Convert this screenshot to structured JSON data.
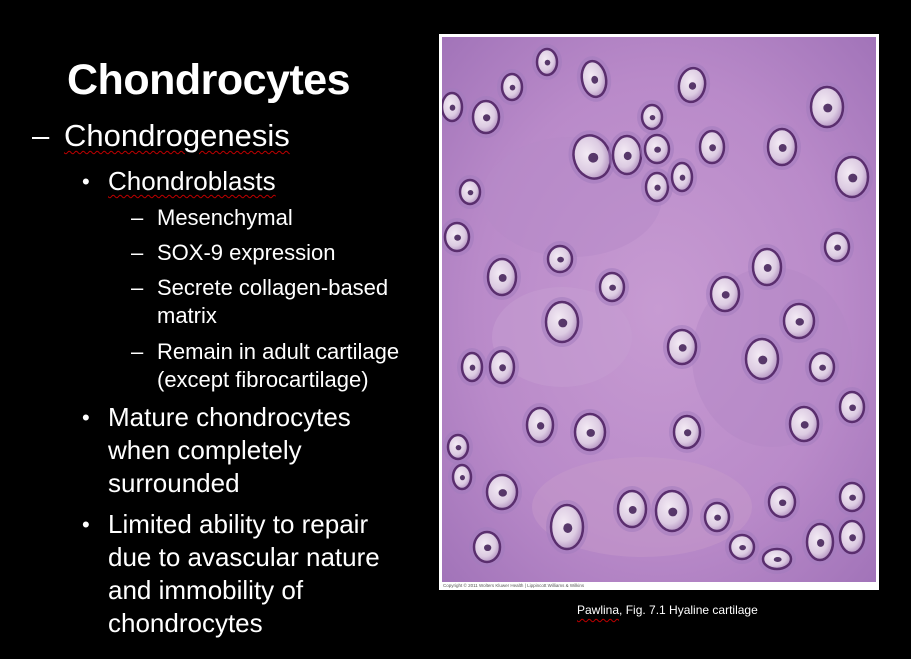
{
  "slide": {
    "title": "Chondrocytes",
    "level1": {
      "dash": "–",
      "text": "Chondrogenesis"
    },
    "chondroblasts": {
      "bullet": "•",
      "text": "Chondroblasts"
    },
    "sub_items": [
      {
        "dash": "–",
        "lines": [
          "Mesenchymal"
        ]
      },
      {
        "dash": "–",
        "lines": [
          "SOX-9 expression"
        ]
      },
      {
        "dash": "–",
        "lines": [
          "Secrete collagen-based",
          "matrix"
        ]
      },
      {
        "dash": "–",
        "lines": [
          "Remain in adult cartilage",
          "(except fibrocartilage)"
        ]
      }
    ],
    "bullet2": {
      "bullet": "•",
      "lines": [
        "Mature chondrocytes",
        "when completely",
        "surrounded"
      ]
    },
    "bullet3": {
      "bullet": "•",
      "lines": [
        "Limited ability to repair",
        "due to avascular nature",
        "and immobility of",
        "chondrocytes"
      ]
    }
  },
  "figure": {
    "caption_author": "Pawlina",
    "caption_rest": ", Fig. 7.1 Hyaline cartilage",
    "copyright": "Copyright © 2011 Wolters Kluwer Health | Lippincott Williams & Wilkins",
    "image_subject": "hyaline cartilage micrograph"
  },
  "colors": {
    "background": "#000000",
    "text": "#ffffff",
    "spell_underline": "#c00000",
    "matrix": "#b07fc4",
    "cell": "#5a2e6e"
  }
}
